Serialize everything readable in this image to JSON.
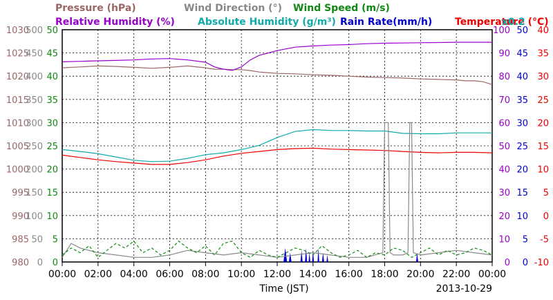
{
  "chart_data": {
    "type": "line",
    "date": "2013-10-29",
    "xlabel": "Time (JST)",
    "x_ticks": [
      "00:00",
      "02:00",
      "04:00",
      "06:00",
      "08:00",
      "10:00",
      "12:00",
      "14:00",
      "16:00",
      "18:00",
      "20:00",
      "22:00",
      "00:00"
    ],
    "grid": true,
    "legend": {
      "line1": [
        {
          "name": "Pressure (hPa)",
          "color": "#996666"
        },
        {
          "name": "Wind Direction (°)",
          "color": "#888888"
        },
        {
          "name": "Wind Speed (m/s)",
          "color": "#118811"
        }
      ],
      "line2": [
        {
          "name": "Relative Humidity (%)",
          "color": "#9900cc"
        },
        {
          "name": "Absolute Humidity (g/m³)",
          "color": "#11aaaa"
        },
        {
          "name": "Rain Rate(mm/h)",
          "color": "#0000cc"
        },
        {
          "name": "Temperature (°C)",
          "color": "#ee0000"
        },
        {
          "name": "x0.2",
          "color": "#11aaaa"
        }
      ]
    },
    "axes": {
      "pressure": {
        "ticks": [
          "1030",
          "1025",
          "1020",
          "1015",
          "1010",
          "1005",
          "1000",
          "995",
          "990",
          "985",
          "980"
        ],
        "ylim": [
          980,
          1030
        ],
        "color": "#996666"
      },
      "wind_direction": {
        "ticks": [
          "500",
          "450",
          "400",
          "350",
          "300",
          "250",
          "200",
          "150",
          "100",
          "50",
          "0"
        ],
        "ylim": [
          0,
          500
        ],
        "color": "#888888"
      },
      "wind_speed": {
        "ticks": [
          "50",
          "45",
          "40",
          "35",
          "30",
          "25",
          "20",
          "15",
          "10",
          "5",
          "0"
        ],
        "ylim": [
          0,
          50
        ],
        "color": "#118811"
      },
      "relative_humidity": {
        "ticks": [
          "100",
          "90",
          "80",
          "70",
          "60",
          "50",
          "40",
          "30",
          "20",
          "10",
          "0"
        ],
        "ylim": [
          0,
          100
        ],
        "color": "#9900cc"
      },
      "rain_rate": {
        "ticks": [
          "50",
          "45",
          "40",
          "35",
          "30",
          "25",
          "20",
          "15",
          "10",
          "5",
          "0"
        ],
        "ylim": [
          0,
          50
        ],
        "color": "#0000cc"
      },
      "temperature": {
        "ticks": [
          "40",
          "35",
          "30",
          "25",
          "20",
          "15",
          "10",
          "5",
          "0",
          "-5",
          "-10"
        ],
        "ylim": [
          -10,
          40
        ],
        "color": "#ee0000"
      }
    },
    "series": [
      {
        "name": "Pressure (hPa)",
        "axis": "pressure",
        "color": "#996666",
        "x": [
          0,
          1,
          2,
          3,
          4,
          5,
          6,
          7,
          8,
          8.5,
          9,
          9.5,
          10,
          10.5,
          11,
          12,
          13,
          14,
          15,
          16,
          17,
          18,
          19,
          20,
          21,
          22,
          22.5,
          23,
          23.5,
          24
        ],
        "y": [
          1021.8,
          1022.0,
          1022.2,
          1022.1,
          1021.9,
          1021.7,
          1021.9,
          1022.2,
          1021.8,
          1021.5,
          1021.5,
          1021.4,
          1021.4,
          1021.2,
          1020.9,
          1020.6,
          1020.5,
          1020.3,
          1020.2,
          1020.0,
          1019.8,
          1019.7,
          1019.6,
          1019.4,
          1019.3,
          1019.2,
          1019.0,
          1019.0,
          1018.8,
          1018.2
        ]
      },
      {
        "name": "Relative Humidity (%)",
        "axis": "relative_humidity",
        "color": "#9900cc",
        "x": [
          0,
          1,
          2,
          3,
          4,
          5,
          6,
          7,
          8,
          8.5,
          9,
          9.5,
          10,
          10.5,
          11,
          12,
          13,
          14,
          15,
          16,
          17,
          18,
          19,
          20,
          21,
          22,
          23,
          24
        ],
        "y": [
          86.2,
          86.4,
          86.6,
          86.8,
          87.0,
          87.4,
          87.6,
          87.0,
          86.0,
          84.0,
          83.0,
          82.5,
          84.0,
          87.0,
          89.0,
          91.0,
          92.5,
          93.0,
          93.4,
          93.6,
          94.0,
          94.2,
          94.3,
          94.4,
          94.5,
          94.6,
          94.6,
          94.6
        ]
      },
      {
        "name": "Absolute Humidity (g/m³)",
        "axis": "relative_humidity",
        "color": "#11aaaa",
        "x": [
          0,
          1,
          2,
          3,
          4,
          5,
          6,
          7,
          8,
          9,
          10,
          11,
          12,
          13,
          14,
          15,
          16,
          17,
          18,
          19,
          20,
          21,
          22,
          23,
          24
        ],
        "y": [
          48.4,
          47.6,
          46.6,
          45.2,
          43.8,
          43.2,
          43.4,
          44.6,
          46.2,
          47.0,
          48.4,
          50.2,
          53.6,
          56.2,
          57.0,
          56.6,
          56.6,
          56.4,
          56.4,
          55.4,
          55.2,
          55.2,
          55.6,
          55.6,
          55.6
        ]
      },
      {
        "name": "Temperature (°C)",
        "axis": "temperature",
        "color": "#ee0000",
        "x": [
          0,
          1,
          2,
          3,
          4,
          5,
          6,
          7,
          8,
          9,
          10,
          11,
          12,
          13,
          14,
          15,
          16,
          17,
          18,
          19,
          20,
          21,
          22,
          23,
          24
        ],
        "y": [
          13.0,
          12.5,
          12.0,
          11.6,
          11.3,
          11.0,
          11.0,
          11.4,
          12.0,
          12.8,
          13.4,
          13.8,
          14.2,
          14.4,
          14.5,
          14.3,
          14.2,
          14.1,
          14.0,
          13.8,
          13.6,
          13.5,
          13.6,
          13.6,
          13.5
        ]
      },
      {
        "name": "Wind Direction (°)",
        "axis": "wind_direction",
        "color": "#888888",
        "x": [
          0,
          0.5,
          1,
          2,
          3,
          4,
          5,
          6,
          7,
          8,
          9,
          10,
          11,
          12,
          13,
          14,
          15,
          16,
          17,
          17.9,
          18.0,
          18.1,
          18.2,
          18.3,
          18.5,
          19,
          19.3,
          19.4,
          19.5,
          19.6,
          20,
          21,
          22,
          23,
          24
        ],
        "y": [
          10,
          40,
          30,
          20,
          15,
          10,
          10,
          15,
          25,
          20,
          15,
          20,
          15,
          10,
          15,
          20,
          15,
          10,
          10,
          20,
          300,
          300,
          300,
          20,
          15,
          15,
          20,
          300,
          300,
          20,
          15,
          20,
          25,
          20,
          15
        ]
      },
      {
        "name": "Wind Speed (m/s)",
        "axis": "wind_speed",
        "color": "#118811",
        "x": [
          0,
          0.5,
          1,
          1.5,
          2,
          2.5,
          3,
          3.5,
          4,
          4.5,
          5,
          5.5,
          6,
          6.5,
          7,
          7.5,
          8,
          8.5,
          9,
          9.5,
          10,
          10.5,
          11,
          11.5,
          12,
          12.5,
          13,
          13.5,
          14,
          14.5,
          15,
          15.5,
          16,
          16.5,
          17,
          17.5,
          18,
          18.5,
          19,
          19.5,
          20,
          20.5,
          21,
          21.5,
          22,
          22.5,
          23,
          23.5,
          24
        ],
        "y": [
          1.5,
          3.0,
          2.0,
          3.5,
          1.0,
          2.5,
          4.0,
          3.0,
          4.5,
          2.0,
          3.0,
          1.5,
          2.5,
          4.5,
          3.0,
          2.0,
          3.5,
          1.5,
          4.0,
          4.5,
          2.0,
          1.0,
          2.5,
          1.5,
          1.0,
          2.0,
          3.0,
          2.5,
          1.5,
          3.5,
          2.0,
          1.0,
          1.5,
          2.5,
          1.0,
          2.0,
          1.5,
          3.0,
          2.5,
          1.0,
          2.0,
          3.0,
          1.5,
          2.5,
          1.5,
          2.0,
          3.0,
          2.5,
          1.5
        ]
      }
    ],
    "rain_rate": {
      "name": "Rain Rate(mm/h)",
      "axis": "rain_rate",
      "color": "#0000cc",
      "bursts": [
        {
          "x": 12.35,
          "w": 0.2,
          "y": 3.0
        },
        {
          "x": 12.65,
          "w": 0.15,
          "y": 2.0
        },
        {
          "x": 13.3,
          "w": 0.12,
          "y": 2.5
        },
        {
          "x": 13.55,
          "w": 0.12,
          "y": 3.0
        },
        {
          "x": 13.75,
          "w": 0.1,
          "y": 2.0
        },
        {
          "x": 13.95,
          "w": 0.1,
          "y": 2.5
        },
        {
          "x": 14.25,
          "w": 0.1,
          "y": 3.0
        },
        {
          "x": 14.5,
          "w": 0.12,
          "y": 2.0
        },
        {
          "x": 14.75,
          "w": 0.1,
          "y": 1.5
        },
        {
          "x": 19.75,
          "w": 0.12,
          "y": 2.0
        }
      ]
    }
  }
}
